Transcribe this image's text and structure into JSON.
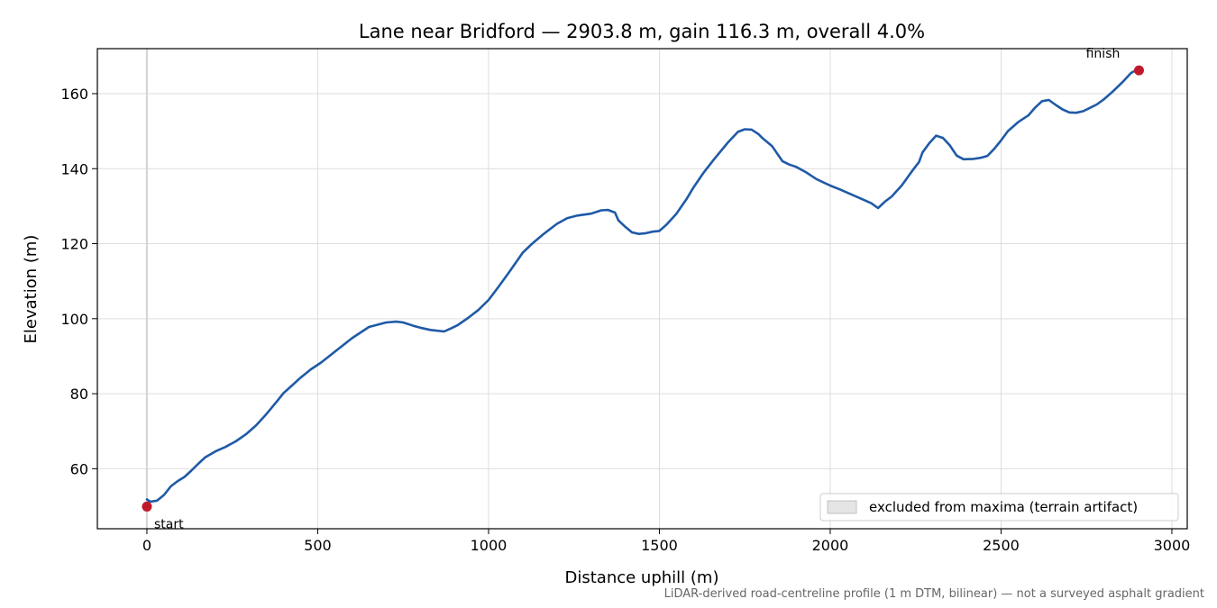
{
  "footnote": "LiDAR-derived road-centreline profile (1 m DTM, bilinear) — not a surveyed asphalt gradient",
  "chart_data": {
    "type": "line",
    "title": "Lane near Bridford — 2903.8 m, gain 116.3 m, overall 4.0%",
    "xlabel": "Distance uphill (m)",
    "ylabel": "Elevation (m)",
    "xlim": [
      -145,
      3045
    ],
    "ylim": [
      44,
      172
    ],
    "xticks": [
      0,
      500,
      1000,
      1500,
      2000,
      2500,
      3000
    ],
    "yticks": [
      60,
      80,
      100,
      120,
      140,
      160
    ],
    "grid": true,
    "legend_position": "lower-right",
    "excluded_band": {
      "x_range": [
        -3,
        3
      ],
      "legend_label": "excluded from maxima (terrain artifact)",
      "color": "#d3d3d3"
    },
    "series": [
      {
        "color": "#1f5aa6",
        "x": [
          0,
          10,
          30,
          50,
          70,
          90,
          110,
          130,
          150,
          170,
          200,
          230,
          260,
          290,
          320,
          350,
          380,
          400,
          420,
          450,
          480,
          510,
          550,
          600,
          650,
          700,
          730,
          750,
          780,
          800,
          830,
          870,
          890,
          910,
          940,
          970,
          1000,
          1030,
          1060,
          1100,
          1130,
          1160,
          1200,
          1230,
          1260,
          1300,
          1330,
          1350,
          1370,
          1380,
          1400,
          1420,
          1440,
          1460,
          1480,
          1500,
          1520,
          1550,
          1580,
          1600,
          1630,
          1660,
          1700,
          1730,
          1750,
          1770,
          1790,
          1800,
          1830,
          1860,
          1880,
          1900,
          1930,
          1960,
          2000,
          2030,
          2060,
          2090,
          2120,
          2140,
          2160,
          2180,
          2210,
          2240,
          2260,
          2270,
          2290,
          2310,
          2330,
          2350,
          2370,
          2390,
          2420,
          2440,
          2460,
          2480,
          2500,
          2520,
          2550,
          2580,
          2600,
          2620,
          2640,
          2660,
          2680,
          2700,
          2720,
          2740,
          2760,
          2780,
          2800,
          2830,
          2860,
          2880,
          2895
        ],
        "y": [
          51.8,
          51.2,
          51.5,
          53,
          55.3,
          56.7,
          57.8,
          59.5,
          61.3,
          63,
          64.6,
          65.8,
          67.3,
          69.2,
          71.6,
          74.6,
          77.9,
          80.2,
          81.8,
          84.3,
          86.5,
          88.3,
          91.2,
          94.8,
          97.8,
          99,
          99.2,
          99,
          98.1,
          97.6,
          97,
          96.6,
          97.4,
          98.3,
          100.2,
          102.3,
          105,
          108.6,
          112.4,
          117.6,
          120.2,
          122.5,
          125.3,
          126.8,
          127.5,
          128,
          128.9,
          129,
          128.3,
          126.2,
          124.5,
          123,
          122.6,
          122.8,
          123.2,
          123.4,
          125,
          128,
          132,
          135,
          139,
          142.5,
          146.9,
          149.8,
          150.5,
          150.4,
          149.2,
          148.3,
          146,
          142,
          141.1,
          140.5,
          139,
          137.2,
          135.5,
          134.4,
          133.2,
          132,
          130.8,
          129.5,
          131.2,
          132.6,
          135.6,
          139.4,
          141.8,
          144.3,
          146.8,
          148.8,
          148.2,
          146.2,
          143.5,
          142.5,
          142.6,
          142.9,
          143.4,
          145.3,
          147.5,
          150,
          152.4,
          154.2,
          156.3,
          158,
          158.3,
          157,
          155.8,
          155,
          154.9,
          155.3,
          156.2,
          157.1,
          158.4,
          160.8,
          163.5,
          165.5,
          166.3
        ]
      }
    ],
    "markers": [
      {
        "label": "start",
        "x": 0,
        "y": 49.9,
        "color": "#c0192b"
      },
      {
        "label": "finish",
        "x": 2903.8,
        "y": 166.2,
        "color": "#c0192b"
      }
    ]
  }
}
